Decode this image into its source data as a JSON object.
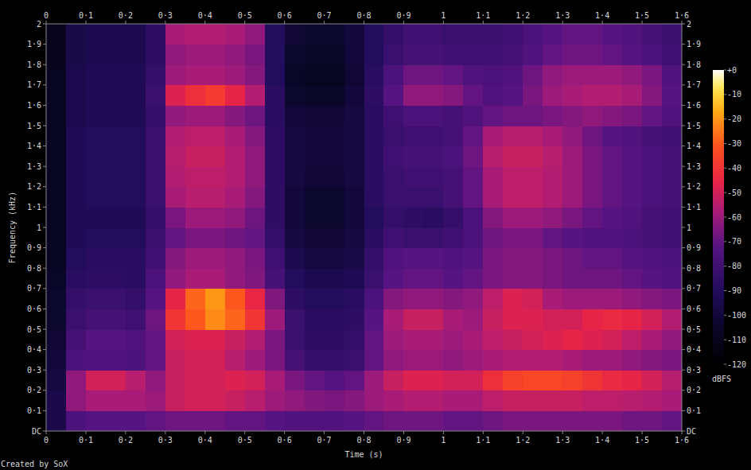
{
  "chart_data": {
    "type": "heatmap",
    "x_label": "Time (s)",
    "y_label": "Frequency (kHz)",
    "colorbar_label": "dBFS",
    "annotation": "Created by SoX",
    "xlim": [
      0,
      1.6
    ],
    "ylim": [
      0,
      2
    ],
    "xticks": [
      0,
      {
        "value": 0.1,
        "label": "0·1"
      },
      {
        "value": 0.2,
        "label": "0·2"
      },
      {
        "value": 0.3,
        "label": "0·3"
      },
      {
        "value": 0.4,
        "label": "0·4"
      },
      {
        "value": 0.5,
        "label": "0·5"
      },
      {
        "value": 0.6,
        "label": "0·6"
      },
      {
        "value": 0.7,
        "label": "0·7"
      },
      {
        "value": 0.8,
        "label": "0·8"
      },
      {
        "value": 0.9,
        "label": "0·9"
      },
      1,
      {
        "value": 1.1,
        "label": "1·1"
      },
      {
        "value": 1.2,
        "label": "1·2"
      },
      {
        "value": 1.3,
        "label": "1·3"
      },
      {
        "value": 1.4,
        "label": "1·4"
      },
      {
        "value": 1.5,
        "label": "1·5"
      },
      {
        "value": 1.6,
        "label": "1·6"
      }
    ],
    "yticks": [
      {
        "value": 0,
        "label": "DC"
      },
      {
        "value": 0.1,
        "label": "0·1"
      },
      {
        "value": 0.2,
        "label": "0·2"
      },
      {
        "value": 0.3,
        "label": "0·3"
      },
      {
        "value": 0.4,
        "label": "0·4"
      },
      {
        "value": 0.5,
        "label": "0·5"
      },
      {
        "value": 0.6,
        "label": "0·6"
      },
      {
        "value": 0.7,
        "label": "0·7"
      },
      {
        "value": 0.8,
        "label": "0·8"
      },
      {
        "value": 0.9,
        "label": "0·9"
      },
      1,
      {
        "value": 1.1,
        "label": "1·1"
      },
      {
        "value": 1.2,
        "label": "1·2"
      },
      {
        "value": 1.3,
        "label": "1·3"
      },
      {
        "value": 1.4,
        "label": "1·4"
      },
      {
        "value": 1.5,
        "label": "1·5"
      },
      {
        "value": 1.6,
        "label": "1·6"
      },
      {
        "value": 1.7,
        "label": "1·7"
      },
      {
        "value": 1.8,
        "label": "1·8"
      },
      {
        "value": 1.9,
        "label": "1·9"
      },
      2
    ],
    "colorbar_range": [
      -120,
      0
    ],
    "colorbar_ticks": [
      {
        "value": 0,
        "label": "+0"
      },
      -10,
      -20,
      -30,
      -40,
      -50,
      -60,
      -70,
      -80,
      -90,
      -100,
      -110,
      -120
    ],
    "x": [
      0.025,
      0.075,
      0.125,
      0.175,
      0.225,
      0.275,
      0.325,
      0.375,
      0.425,
      0.475,
      0.525,
      0.575,
      0.625,
      0.675,
      0.725,
      0.775,
      0.825,
      0.875,
      0.925,
      0.975,
      1.025,
      1.075,
      1.125,
      1.175,
      1.225,
      1.275,
      1.325,
      1.375,
      1.425,
      1.475,
      1.525,
      1.575
    ],
    "y": [
      0.05,
      0.15,
      0.25,
      0.35,
      0.45,
      0.55,
      0.65,
      0.75,
      0.85,
      0.95,
      1.05,
      1.15,
      1.25,
      1.35,
      1.45,
      1.55,
      1.65,
      1.75,
      1.85,
      1.95
    ],
    "values": [
      [
        -95,
        -75,
        -72,
        -72,
        -72,
        -70,
        -68,
        -68,
        -68,
        -70,
        -70,
        -72,
        -74,
        -74,
        -74,
        -72,
        -70,
        -68,
        -68,
        -68,
        -70,
        -70,
        -68,
        -66,
        -66,
        -66,
        -66,
        -66,
        -66,
        -68,
        -68,
        -70
      ],
      [
        -95,
        -62,
        -58,
        -58,
        -58,
        -60,
        -52,
        -50,
        -50,
        -52,
        -55,
        -60,
        -62,
        -65,
        -66,
        -64,
        -60,
        -58,
        -56,
        -56,
        -58,
        -58,
        -54,
        -52,
        -52,
        -52,
        -52,
        -54,
        -54,
        -55,
        -56,
        -58
      ],
      [
        -98,
        -62,
        -50,
        -50,
        -55,
        -62,
        -52,
        -50,
        -50,
        -48,
        -50,
        -58,
        -66,
        -70,
        -72,
        -70,
        -60,
        -52,
        -48,
        -48,
        -50,
        -50,
        -42,
        -36,
        -34,
        -34,
        -36,
        -40,
        -44,
        -46,
        -50,
        -55
      ],
      [
        -100,
        -75,
        -74,
        -74,
        -75,
        -70,
        -52,
        -50,
        -50,
        -55,
        -60,
        -66,
        -78,
        -84,
        -84,
        -82,
        -70,
        -62,
        -60,
        -60,
        -62,
        -60,
        -58,
        -56,
        -56,
        -56,
        -58,
        -60,
        -60,
        -62,
        -64,
        -66
      ],
      [
        -102,
        -78,
        -72,
        -72,
        -74,
        -70,
        -50,
        -48,
        -48,
        -52,
        -56,
        -66,
        -82,
        -86,
        -86,
        -84,
        -70,
        -60,
        -58,
        -58,
        -60,
        -58,
        -54,
        -52,
        -50,
        -48,
        -46,
        -48,
        -50,
        -54,
        -58,
        -62
      ],
      [
        -104,
        -82,
        -78,
        -78,
        -80,
        -68,
        -40,
        -30,
        -22,
        -28,
        -40,
        -60,
        -82,
        -88,
        -88,
        -86,
        -72,
        -58,
        -52,
        -52,
        -58,
        -60,
        -52,
        -48,
        -48,
        -50,
        -50,
        -46,
        -44,
        -46,
        -50,
        -56
      ],
      [
        -104,
        -84,
        -82,
        -82,
        -84,
        -72,
        -46,
        -28,
        -20,
        -30,
        -45,
        -65,
        -86,
        -90,
        -90,
        -88,
        -76,
        -64,
        -62,
        -62,
        -64,
        -62,
        -54,
        -48,
        -50,
        -58,
        -60,
        -60,
        -60,
        -62,
        -64,
        -66
      ],
      [
        -106,
        -88,
        -86,
        -86,
        -88,
        -76,
        -62,
        -58,
        -58,
        -62,
        -65,
        -78,
        -90,
        -94,
        -94,
        -92,
        -82,
        -72,
        -70,
        -70,
        -72,
        -70,
        -66,
        -64,
        -64,
        -66,
        -68,
        -68,
        -68,
        -70,
        -72,
        -74
      ],
      [
        -108,
        -90,
        -88,
        -88,
        -88,
        -80,
        -64,
        -60,
        -60,
        -62,
        -66,
        -80,
        -94,
        -98,
        -98,
        -96,
        -84,
        -74,
        -72,
        -72,
        -74,
        -72,
        -66,
        -64,
        -64,
        -66,
        -68,
        -70,
        -70,
        -72,
        -74,
        -76
      ],
      [
        -108,
        -92,
        -90,
        -90,
        -90,
        -82,
        -70,
        -66,
        -66,
        -68,
        -70,
        -84,
        -98,
        -102,
        -102,
        -98,
        -88,
        -80,
        -82,
        -82,
        -80,
        -76,
        -68,
        -66,
        -66,
        -70,
        -72,
        -74,
        -74,
        -76,
        -78,
        -80
      ],
      [
        -108,
        -92,
        -92,
        -92,
        -92,
        -84,
        -66,
        -60,
        -60,
        -62,
        -68,
        -86,
        -100,
        -104,
        -104,
        -100,
        -90,
        -84,
        -86,
        -88,
        -84,
        -76,
        -64,
        -60,
        -60,
        -62,
        -66,
        -70,
        -72,
        -74,
        -78,
        -80
      ],
      [
        -108,
        -92,
        -90,
        -90,
        -90,
        -82,
        -58,
        -55,
        -55,
        -58,
        -64,
        -86,
        -100,
        -104,
        -104,
        -100,
        -88,
        -82,
        -82,
        -82,
        -78,
        -70,
        -58,
        -54,
        -54,
        -56,
        -60,
        -66,
        -70,
        -72,
        -76,
        -78
      ],
      [
        -108,
        -92,
        -90,
        -90,
        -90,
        -82,
        -56,
        -54,
        -54,
        -56,
        -62,
        -86,
        -98,
        -102,
        -102,
        -98,
        -88,
        -82,
        -80,
        -80,
        -78,
        -70,
        -58,
        -54,
        -54,
        -56,
        -60,
        -66,
        -70,
        -72,
        -76,
        -78
      ],
      [
        -108,
        -92,
        -90,
        -90,
        -90,
        -82,
        -55,
        -52,
        -52,
        -56,
        -62,
        -86,
        -98,
        -100,
        -100,
        -98,
        -88,
        -80,
        -78,
        -78,
        -76,
        -68,
        -55,
        -52,
        -52,
        -55,
        -60,
        -66,
        -70,
        -72,
        -76,
        -78
      ],
      [
        -108,
        -92,
        -90,
        -90,
        -90,
        -82,
        -56,
        -54,
        -54,
        -58,
        -64,
        -86,
        -98,
        -100,
        -100,
        -98,
        -88,
        -82,
        -80,
        -80,
        -78,
        -70,
        -58,
        -55,
        -55,
        -58,
        -62,
        -68,
        -72,
        -74,
        -78,
        -80
      ],
      [
        -108,
        -94,
        -92,
        -92,
        -92,
        -84,
        -62,
        -60,
        -60,
        -64,
        -68,
        -88,
        -100,
        -102,
        -102,
        -98,
        -88,
        -80,
        -76,
        -76,
        -78,
        -74,
        -70,
        -68,
        -68,
        -66,
        -64,
        -62,
        -64,
        -66,
        -70,
        -74
      ],
      [
        -108,
        -94,
        -92,
        -92,
        -92,
        -82,
        -48,
        -42,
        -38,
        -46,
        -56,
        -88,
        -104,
        -106,
        -106,
        -100,
        -86,
        -72,
        -62,
        -62,
        -64,
        -70,
        -74,
        -72,
        -66,
        -60,
        -58,
        -56,
        -56,
        -58,
        -64,
        -72
      ],
      [
        -108,
        -94,
        -92,
        -92,
        -92,
        -84,
        -60,
        -58,
        -58,
        -60,
        -64,
        -90,
        -106,
        -108,
        -108,
        -102,
        -88,
        -76,
        -68,
        -68,
        -70,
        -74,
        -76,
        -74,
        -68,
        -62,
        -60,
        -60,
        -60,
        -62,
        -66,
        -74
      ],
      [
        -110,
        -96,
        -94,
        -94,
        -94,
        -86,
        -62,
        -60,
        -60,
        -62,
        -66,
        -90,
        -104,
        -106,
        -106,
        -100,
        -90,
        -82,
        -78,
        -78,
        -80,
        -80,
        -80,
        -78,
        -74,
        -70,
        -68,
        -68,
        -70,
        -72,
        -76,
        -80
      ],
      [
        -110,
        -96,
        -94,
        -94,
        -94,
        -86,
        -58,
        -56,
        -56,
        -58,
        -62,
        -90,
        -102,
        -104,
        -104,
        -100,
        -90,
        -84,
        -80,
        -80,
        -82,
        -82,
        -82,
        -80,
        -76,
        -72,
        -70,
        -70,
        -72,
        -74,
        -78,
        -82
      ]
    ]
  }
}
